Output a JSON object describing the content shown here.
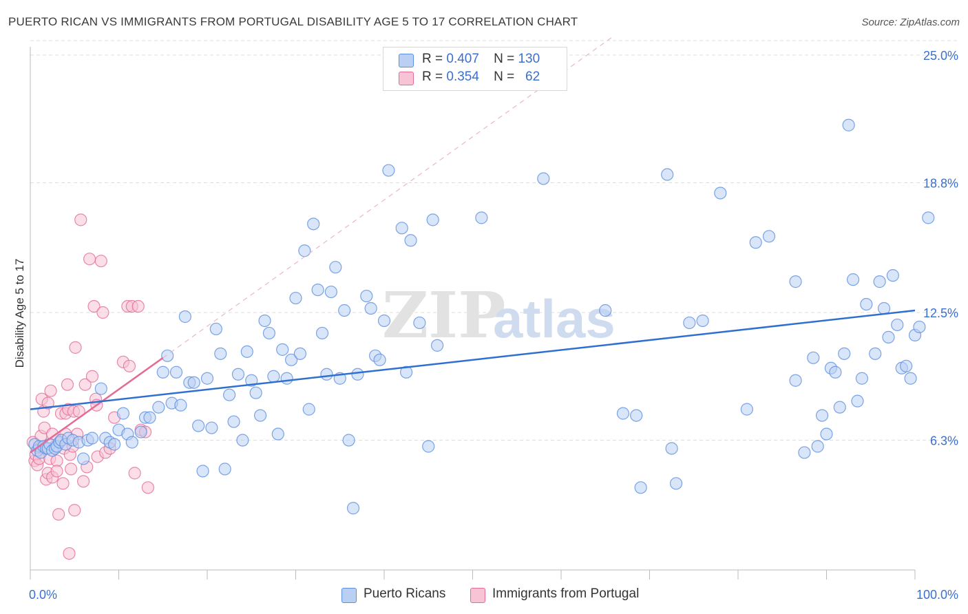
{
  "title": "PUERTO RICAN VS IMMIGRANTS FROM PORTUGAL DISABILITY AGE 5 TO 17 CORRELATION CHART",
  "source": "Source: ZipAtlas.com",
  "legend": {
    "rows": [
      {
        "r_label": "R =",
        "r_value": "0.407",
        "n_label": "N =",
        "n_value": "130"
      },
      {
        "r_label": "R =",
        "r_value": "0.354",
        "n_label": "N =",
        "n_value": "62"
      }
    ]
  },
  "bottom_legend": [
    "Puerto Ricans",
    "Immigrants from Portugal"
  ],
  "colors": {
    "blue": "#5b8fe0",
    "blue_fill": "#b9d0f4",
    "pink": "#e46b96",
    "pink_fill": "#f8c3d4",
    "axis_label": "#3a6fcf"
  },
  "chart_data": {
    "type": "scatter",
    "ylabel": "Disability Age 5 to 17",
    "xlabel": "",
    "xlim": [
      0,
      100
    ],
    "ylim": [
      0,
      25
    ],
    "x_tick_labels": [
      "0.0%",
      "100.0%"
    ],
    "y_ticks": [
      6.3,
      12.5,
      18.8,
      25.0
    ],
    "y_tick_labels": [
      "6.3%",
      "12.5%",
      "18.8%",
      "25.0%"
    ],
    "grid": true,
    "watermark": "ZIPatlas",
    "series": [
      {
        "name": "Puerto Ricans",
        "color": "#5b8fe0",
        "trend": {
          "x": [
            0,
            100
          ],
          "y": [
            7.8,
            12.6
          ]
        },
        "points": [
          [
            0.5,
            6.1
          ],
          [
            0.8,
            5.8
          ],
          [
            1.0,
            6.0
          ],
          [
            1.2,
            5.7
          ],
          [
            1.5,
            6.0
          ],
          [
            1.8,
            5.9
          ],
          [
            2.0,
            5.9
          ],
          [
            2.2,
            6.1
          ],
          [
            2.5,
            5.8
          ],
          [
            2.8,
            5.9
          ],
          [
            3.0,
            6.0
          ],
          [
            3.3,
            6.2
          ],
          [
            3.5,
            6.3
          ],
          [
            4.0,
            6.1
          ],
          [
            4.3,
            6.4
          ],
          [
            4.8,
            6.3
          ],
          [
            5.5,
            6.2
          ],
          [
            6.0,
            5.4
          ],
          [
            6.5,
            6.3
          ],
          [
            7.0,
            6.4
          ],
          [
            8.0,
            8.8
          ],
          [
            8.5,
            6.4
          ],
          [
            9.0,
            6.2
          ],
          [
            9.5,
            6.1
          ],
          [
            10.0,
            6.8
          ],
          [
            10.5,
            7.6
          ],
          [
            11.0,
            6.6
          ],
          [
            11.5,
            6.2
          ],
          [
            12.5,
            6.7
          ],
          [
            13.0,
            7.4
          ],
          [
            13.5,
            7.4
          ],
          [
            14.5,
            7.9
          ],
          [
            15.0,
            9.6
          ],
          [
            15.5,
            10.4
          ],
          [
            16.0,
            8.1
          ],
          [
            16.5,
            9.6
          ],
          [
            17.0,
            8.0
          ],
          [
            17.5,
            12.3
          ],
          [
            18.0,
            9.1
          ],
          [
            18.5,
            9.1
          ],
          [
            19.0,
            7.0
          ],
          [
            19.5,
            4.8
          ],
          [
            20.0,
            9.3
          ],
          [
            20.5,
            6.9
          ],
          [
            21.0,
            11.7
          ],
          [
            21.5,
            10.5
          ],
          [
            22.0,
            4.9
          ],
          [
            22.5,
            8.5
          ],
          [
            23.0,
            7.2
          ],
          [
            23.5,
            9.5
          ],
          [
            24.0,
            6.3
          ],
          [
            24.5,
            10.6
          ],
          [
            25.0,
            9.2
          ],
          [
            25.5,
            8.6
          ],
          [
            26.0,
            7.5
          ],
          [
            26.5,
            12.1
          ],
          [
            27.0,
            11.5
          ],
          [
            27.5,
            9.4
          ],
          [
            28.0,
            6.6
          ],
          [
            28.5,
            10.7
          ],
          [
            29.0,
            9.3
          ],
          [
            29.5,
            10.2
          ],
          [
            30.0,
            13.2
          ],
          [
            30.5,
            10.5
          ],
          [
            31.0,
            15.5
          ],
          [
            31.5,
            7.8
          ],
          [
            32.0,
            16.8
          ],
          [
            32.5,
            13.6
          ],
          [
            33.0,
            11.5
          ],
          [
            33.5,
            9.5
          ],
          [
            34.0,
            13.5
          ],
          [
            34.5,
            14.7
          ],
          [
            35.0,
            9.3
          ],
          [
            35.5,
            12.6
          ],
          [
            36.0,
            6.3
          ],
          [
            36.5,
            3.0
          ],
          [
            37.0,
            9.5
          ],
          [
            38.0,
            13.3
          ],
          [
            38.5,
            12.7
          ],
          [
            39.0,
            10.4
          ],
          [
            39.5,
            10.2
          ],
          [
            40.0,
            12.1
          ],
          [
            40.5,
            19.4
          ],
          [
            42.0,
            16.6
          ],
          [
            42.5,
            9.6
          ],
          [
            43.0,
            16.0
          ],
          [
            44.0,
            12.0
          ],
          [
            45.0,
            6.0
          ],
          [
            45.5,
            17.0
          ],
          [
            46.0,
            10.9
          ],
          [
            51.0,
            17.1
          ],
          [
            58.0,
            19.0
          ],
          [
            65.0,
            12.6
          ],
          [
            67.0,
            7.6
          ],
          [
            68.5,
            7.5
          ],
          [
            69.0,
            4.0
          ],
          [
            72.5,
            5.9
          ],
          [
            72.0,
            19.2
          ],
          [
            73.0,
            4.2
          ],
          [
            74.5,
            12.0
          ],
          [
            76.0,
            12.1
          ],
          [
            78.0,
            18.3
          ],
          [
            81.0,
            7.8
          ],
          [
            82.0,
            15.9
          ],
          [
            83.5,
            16.2
          ],
          [
            86.5,
            14.0
          ],
          [
            86.5,
            9.2
          ],
          [
            87.5,
            5.7
          ],
          [
            88.5,
            10.3
          ],
          [
            89.0,
            6.0
          ],
          [
            89.5,
            7.5
          ],
          [
            90.0,
            6.6
          ],
          [
            90.5,
            9.8
          ],
          [
            91.0,
            9.6
          ],
          [
            91.5,
            7.9
          ],
          [
            92.0,
            10.5
          ],
          [
            92.5,
            21.6
          ],
          [
            93.0,
            14.1
          ],
          [
            93.5,
            8.2
          ],
          [
            94.0,
            9.3
          ],
          [
            94.5,
            12.9
          ],
          [
            95.5,
            10.5
          ],
          [
            96.0,
            14.0
          ],
          [
            96.5,
            12.7
          ],
          [
            97.0,
            11.3
          ],
          [
            97.5,
            14.3
          ],
          [
            98.0,
            11.9
          ],
          [
            98.5,
            9.8
          ],
          [
            99.0,
            9.9
          ],
          [
            99.5,
            9.3
          ],
          [
            100.0,
            11.4
          ],
          [
            100.5,
            11.8
          ],
          [
            101.5,
            17.1
          ]
        ]
      },
      {
        "name": "Immigrants from Portugal",
        "color": "#e46b96",
        "trend": {
          "x": [
            0,
            15
          ],
          "y": [
            5.7,
            10.3
          ]
        },
        "points": [
          [
            0.3,
            6.2
          ],
          [
            0.5,
            5.3
          ],
          [
            0.6,
            5.6
          ],
          [
            0.8,
            5.1
          ],
          [
            1.0,
            5.9
          ],
          [
            1.0,
            5.4
          ],
          [
            1.2,
            6.5
          ],
          [
            1.3,
            8.3
          ],
          [
            1.5,
            7.7
          ],
          [
            1.6,
            6.9
          ],
          [
            1.8,
            4.4
          ],
          [
            2.0,
            8.1
          ],
          [
            2.0,
            4.7
          ],
          [
            2.2,
            5.4
          ],
          [
            2.3,
            8.7
          ],
          [
            2.5,
            6.6
          ],
          [
            2.5,
            4.5
          ],
          [
            2.8,
            6.0
          ],
          [
            3.0,
            5.3
          ],
          [
            3.0,
            4.8
          ],
          [
            3.2,
            2.7
          ],
          [
            3.5,
            7.6
          ],
          [
            3.5,
            6.3
          ],
          [
            3.7,
            4.2
          ],
          [
            3.8,
            5.9
          ],
          [
            4.0,
            7.6
          ],
          [
            4.0,
            6.6
          ],
          [
            4.2,
            9.0
          ],
          [
            4.3,
            7.8
          ],
          [
            4.4,
            0.8
          ],
          [
            4.5,
            5.6
          ],
          [
            4.6,
            4.9
          ],
          [
            4.8,
            6.0
          ],
          [
            4.9,
            7.7
          ],
          [
            5.0,
            2.9
          ],
          [
            5.1,
            10.8
          ],
          [
            5.3,
            6.6
          ],
          [
            5.5,
            7.7
          ],
          [
            5.7,
            17.0
          ],
          [
            6.0,
            4.3
          ],
          [
            6.2,
            9.0
          ],
          [
            6.4,
            5.0
          ],
          [
            6.7,
            15.1
          ],
          [
            7.0,
            9.4
          ],
          [
            7.2,
            12.8
          ],
          [
            7.4,
            8.3
          ],
          [
            7.5,
            8.0
          ],
          [
            7.6,
            5.5
          ],
          [
            8.0,
            15.0
          ],
          [
            8.2,
            12.5
          ],
          [
            8.5,
            5.7
          ],
          [
            9.0,
            5.9
          ],
          [
            9.5,
            7.4
          ],
          [
            10.5,
            10.1
          ],
          [
            11.0,
            12.8
          ],
          [
            11.2,
            9.9
          ],
          [
            11.5,
            12.8
          ],
          [
            11.8,
            4.7
          ],
          [
            12.2,
            12.8
          ],
          [
            12.5,
            6.8
          ],
          [
            13.0,
            6.7
          ],
          [
            13.3,
            4.0
          ]
        ]
      }
    ]
  }
}
